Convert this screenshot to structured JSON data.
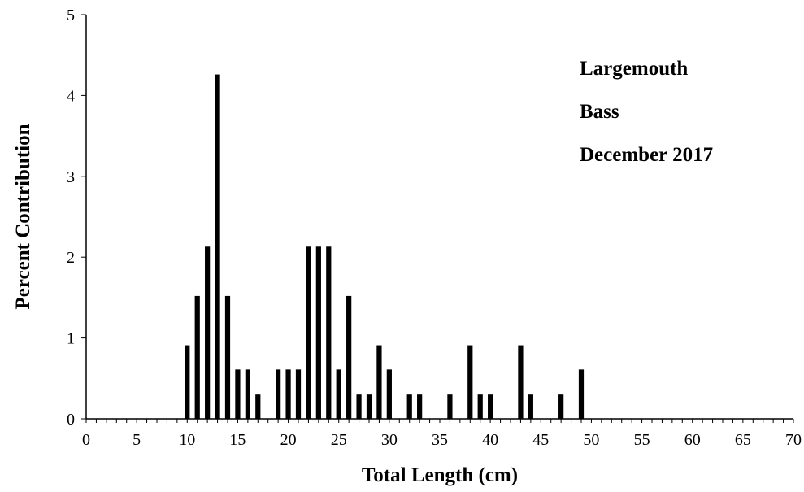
{
  "chart_data": {
    "type": "bar",
    "title": "",
    "xlabel": "Total Length (cm)",
    "ylabel": "Percent Contribution",
    "xlim": [
      0,
      70
    ],
    "ylim": [
      0,
      5
    ],
    "xticks": [
      0,
      5,
      10,
      15,
      20,
      25,
      30,
      35,
      40,
      45,
      50,
      55,
      60,
      65,
      70
    ],
    "yticks": [
      0,
      1,
      2,
      3,
      4,
      5
    ],
    "grid": false,
    "legend": "none",
    "bar_color": "#000000",
    "annotation_lines": [
      "Largemouth",
      "Bass",
      "December 2017"
    ],
    "x": [
      10,
      11,
      12,
      13,
      14,
      15,
      16,
      17,
      19,
      20,
      21,
      22,
      23,
      24,
      25,
      26,
      27,
      28,
      29,
      30,
      32,
      33,
      36,
      38,
      39,
      40,
      43,
      44,
      47,
      49
    ],
    "values": [
      0.91,
      1.52,
      2.13,
      4.26,
      1.52,
      0.61,
      0.61,
      0.3,
      0.61,
      0.61,
      0.61,
      2.13,
      2.13,
      2.13,
      0.61,
      1.52,
      0.3,
      0.3,
      0.91,
      0.61,
      0.3,
      0.3,
      0.3,
      0.91,
      0.3,
      0.3,
      0.91,
      0.3,
      0.3,
      0.61
    ]
  }
}
